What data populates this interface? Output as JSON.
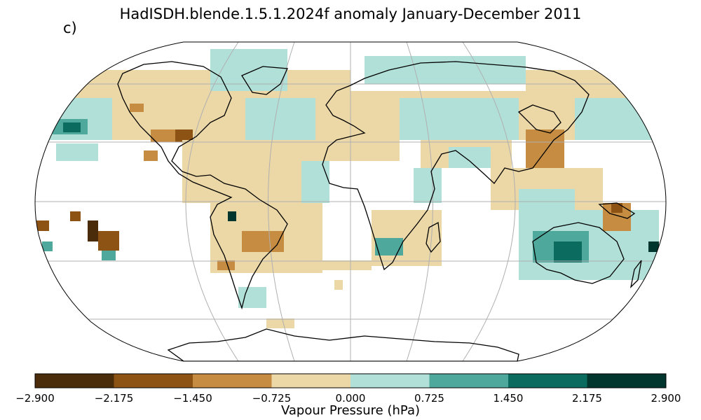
{
  "title": "HadISDH.blende.1.5.1.2024f anomaly January-December 2011",
  "panel_label": "c)",
  "colorbar": {
    "label": "Vapour Pressure (hPa)",
    "ticks": [
      "−2.900",
      "−2.175",
      "−1.450",
      "−0.725",
      "0.000",
      "0.725",
      "1.450",
      "2.175",
      "2.900"
    ],
    "colors": [
      "#4a2c0b",
      "#8d5315",
      "#c68d42",
      "#ecd8a6",
      "#b1e0d9",
      "#4ea99c",
      "#0b6b5e",
      "#01362f"
    ]
  },
  "map": {
    "projection": "Robinson",
    "grid": true,
    "colors": {
      "land_outline": "#000000",
      "gridline": "#b0b0b0"
    }
  }
}
